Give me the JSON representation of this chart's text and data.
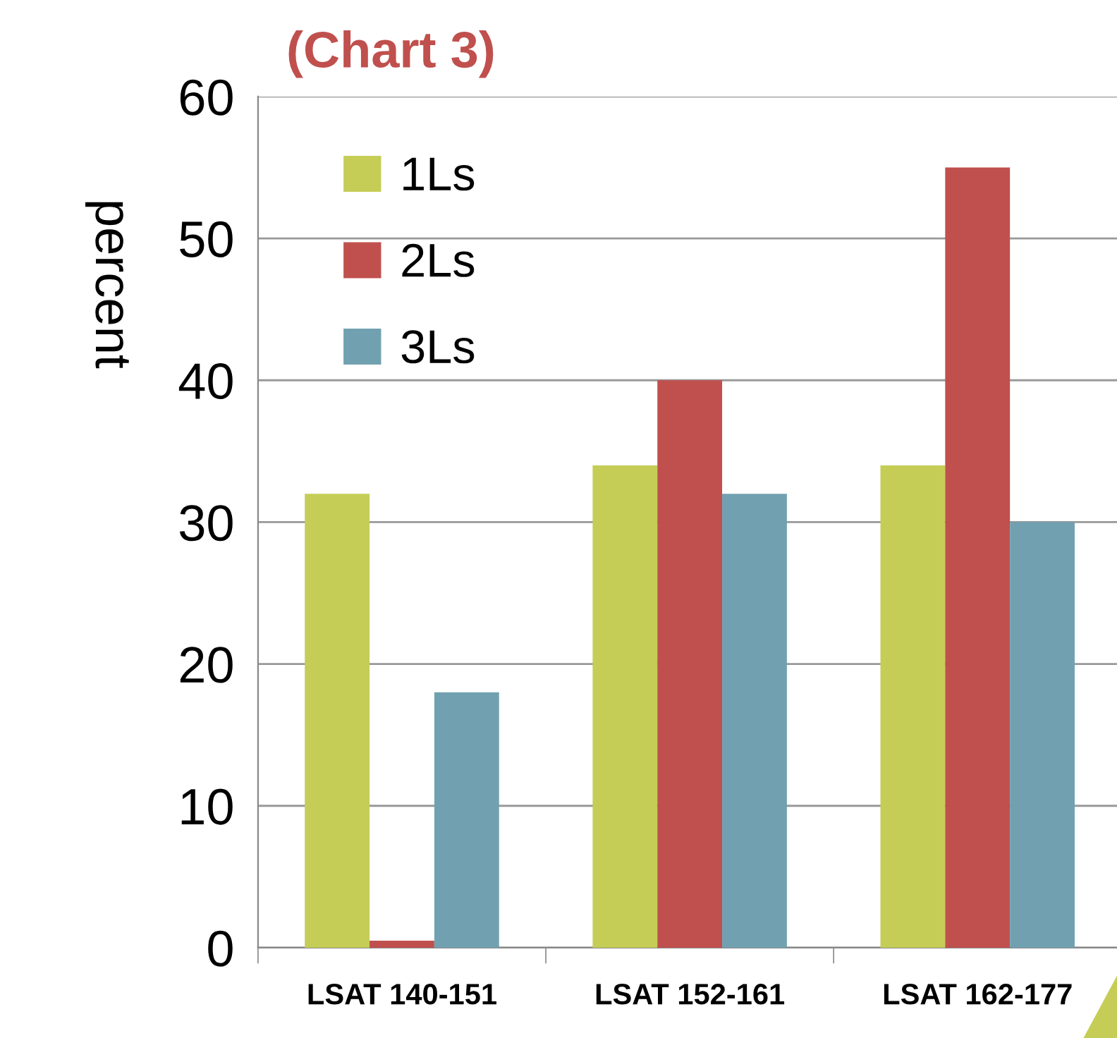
{
  "chart_data": {
    "type": "bar",
    "title": "(Chart 3)",
    "ylabel": "percent",
    "categories": [
      "LSAT 140-151",
      "LSAT 152-161",
      "LSAT 162-177"
    ],
    "series": [
      {
        "name": "1Ls",
        "color": "#c5cd56",
        "values": [
          32,
          34,
          34
        ]
      },
      {
        "name": "2Ls",
        "color": "#c0504d",
        "values": [
          0.5,
          40,
          55
        ]
      },
      {
        "name": "3Ls",
        "color": "#71a1b0",
        "values": [
          18,
          32,
          30
        ]
      }
    ],
    "ylim": [
      0,
      60
    ],
    "yticks": [
      0,
      10,
      20,
      30,
      40,
      50,
      60
    ],
    "grid": "y",
    "legend": "top left"
  }
}
